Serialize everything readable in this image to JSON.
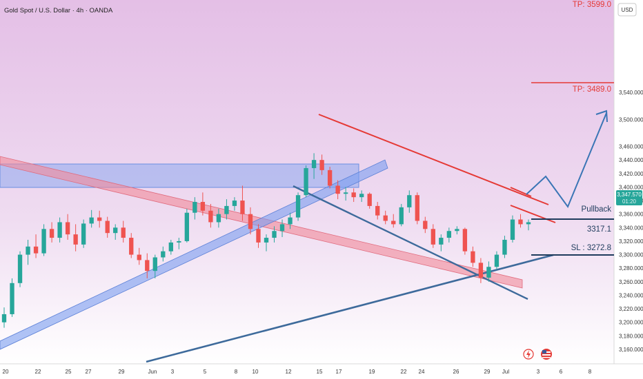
{
  "chart_data": {
    "type": "candlestick",
    "title": "Gold Spot / U.S. Dollar · 4h · OANDA",
    "currency": "USD",
    "y_range": [
      3140,
      3610
    ],
    "y_ticks": [
      3160,
      3180,
      3200,
      3220,
      3240,
      3260,
      3280,
      3300,
      3320,
      3340,
      3360,
      3380,
      3400,
      3420,
      3440,
      3460,
      3500,
      3540
    ],
    "y_tick_labels": [
      "3,160.000",
      "3,180.000",
      "3,200.000",
      "3,220.000",
      "3,240.000",
      "3,260.000",
      "3,280.000",
      "3,300.000",
      "3,320.000",
      "3,340.000",
      "3,360.000",
      "3,380.000",
      "3,400.000",
      "3,420.000",
      "3,440.000",
      "3,460.000",
      "3,500.000",
      "3,540.000"
    ],
    "x_ticks": [
      "20",
      "22",
      "25",
      "27",
      "29",
      "Jun",
      "3",
      "5",
      "8",
      "10",
      "12",
      "15",
      "17",
      "19",
      "22",
      "24",
      "26",
      "29",
      "Jul",
      "3",
      "6",
      "8"
    ],
    "last_price": "3,347.570",
    "price_badge_sub": "01:20",
    "annotations": {
      "tp2": {
        "label": "TP: 3599.0",
        "value": 3599.0
      },
      "tp1": {
        "label": "TP: 3489.0",
        "value": 3489.0
      },
      "pullback": {
        "label": "Pullback"
      },
      "entry": {
        "label": "3317.1",
        "value": 3317.1
      },
      "sl": {
        "label": "SL : 3272.8",
        "value": 3272.8
      }
    },
    "colors": {
      "up": "#26a69a",
      "down": "#ef5350",
      "tp": "#e53935",
      "projection": "#3a75b5",
      "zone": "#7b9ff0",
      "pink_channel": "#f28b9a"
    },
    "candles": [
      [
        3200,
        3222,
        3192,
        3212
      ],
      [
        3212,
        3265,
        3208,
        3258
      ],
      [
        3258,
        3305,
        3252,
        3300
      ],
      [
        3300,
        3322,
        3285,
        3312
      ],
      [
        3312,
        3330,
        3295,
        3302
      ],
      [
        3302,
        3345,
        3298,
        3338
      ],
      [
        3338,
        3348,
        3318,
        3325
      ],
      [
        3325,
        3355,
        3318,
        3348
      ],
      [
        3348,
        3360,
        3322,
        3330
      ],
      [
        3330,
        3345,
        3305,
        3315
      ],
      [
        3315,
        3352,
        3310,
        3346
      ],
      [
        3346,
        3366,
        3340,
        3355
      ],
      [
        3355,
        3365,
        3340,
        3350
      ],
      [
        3350,
        3356,
        3325,
        3332
      ],
      [
        3332,
        3345,
        3322,
        3340
      ],
      [
        3340,
        3350,
        3318,
        3325
      ],
      [
        3325,
        3332,
        3295,
        3300
      ],
      [
        3300,
        3310,
        3285,
        3292
      ],
      [
        3292,
        3302,
        3265,
        3276
      ],
      [
        3276,
        3300,
        3265,
        3296
      ],
      [
        3296,
        3312,
        3290,
        3305
      ],
      [
        3305,
        3322,
        3300,
        3318
      ],
      [
        3318,
        3325,
        3308,
        3320
      ],
      [
        3320,
        3368,
        3318,
        3362
      ],
      [
        3362,
        3385,
        3352,
        3378
      ],
      [
        3378,
        3392,
        3358,
        3365
      ],
      [
        3365,
        3375,
        3340,
        3348
      ],
      [
        3348,
        3368,
        3340,
        3360
      ],
      [
        3360,
        3382,
        3352,
        3372
      ],
      [
        3372,
        3385,
        3365,
        3380
      ],
      [
        3380,
        3402,
        3350,
        3360
      ],
      [
        3360,
        3370,
        3330,
        3338
      ],
      [
        3338,
        3345,
        3310,
        3318
      ],
      [
        3318,
        3330,
        3305,
        3325
      ],
      [
        3325,
        3342,
        3318,
        3335
      ],
      [
        3335,
        3352,
        3326,
        3345
      ],
      [
        3345,
        3362,
        3338,
        3355
      ],
      [
        3355,
        3392,
        3350,
        3388
      ],
      [
        3388,
        3432,
        3385,
        3428
      ],
      [
        3428,
        3450,
        3412,
        3440
      ],
      [
        3440,
        3448,
        3418,
        3425
      ],
      [
        3425,
        3430,
        3398,
        3402
      ],
      [
        3402,
        3410,
        3382,
        3390
      ],
      [
        3390,
        3400,
        3380,
        3392
      ],
      [
        3392,
        3398,
        3378,
        3385
      ],
      [
        3385,
        3395,
        3378,
        3390
      ],
      [
        3390,
        3392,
        3368,
        3372
      ],
      [
        3372,
        3378,
        3352,
        3358
      ],
      [
        3358,
        3365,
        3345,
        3350
      ],
      [
        3350,
        3360,
        3340,
        3345
      ],
      [
        3345,
        3375,
        3342,
        3370
      ],
      [
        3370,
        3395,
        3362,
        3388
      ],
      [
        3388,
        3392,
        3345,
        3350
      ],
      [
        3350,
        3356,
        3332,
        3338
      ],
      [
        3338,
        3345,
        3310,
        3315
      ],
      [
        3315,
        3330,
        3305,
        3325
      ],
      [
        3325,
        3340,
        3318,
        3335
      ],
      [
        3335,
        3342,
        3330,
        3338
      ],
      [
        3338,
        3340,
        3300,
        3305
      ],
      [
        3305,
        3312,
        3282,
        3288
      ],
      [
        3288,
        3295,
        3258,
        3266
      ],
      [
        3266,
        3290,
        3260,
        3282
      ],
      [
        3282,
        3305,
        3278,
        3300
      ],
      [
        3300,
        3328,
        3295,
        3322
      ],
      [
        3322,
        3358,
        3318,
        3352
      ],
      [
        3352,
        3360,
        3340,
        3345
      ],
      [
        3345,
        3352,
        3336,
        3348
      ]
    ]
  }
}
